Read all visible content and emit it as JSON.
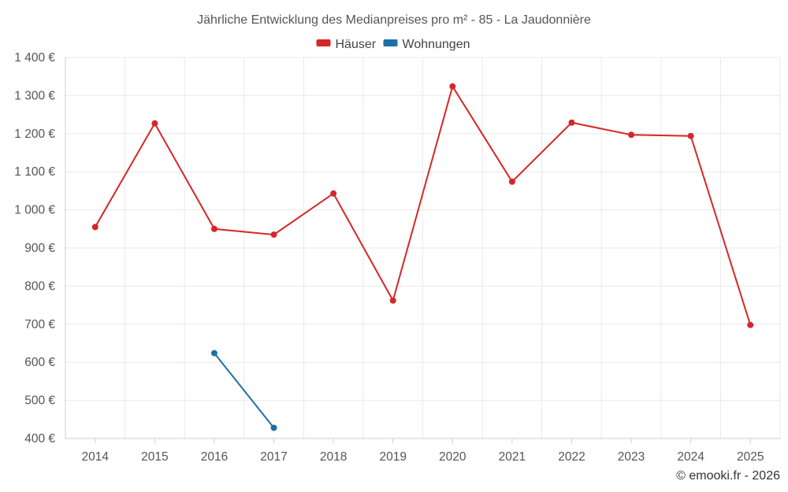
{
  "chart_data": {
    "type": "line",
    "title": "Jährliche Entwicklung des Medianpreises pro m² - 85 - La Jaudonnière",
    "categories": [
      "2014",
      "2015",
      "2016",
      "2017",
      "2018",
      "2019",
      "2020",
      "2021",
      "2022",
      "2023",
      "2024",
      "2025"
    ],
    "series": [
      {
        "name": "Häuser",
        "color": "#d62728",
        "values": [
          955,
          1227,
          950,
          935,
          1043,
          762,
          1324,
          1074,
          1229,
          1197,
          1194,
          698
        ]
      },
      {
        "name": "Wohnungen",
        "color": "#1f6fa6",
        "values": [
          null,
          null,
          624,
          428,
          null,
          null,
          null,
          null,
          null,
          null,
          null,
          null
        ]
      }
    ],
    "ylim": [
      400,
      1400
    ],
    "yticks": [
      400,
      500,
      600,
      700,
      800,
      900,
      1000,
      1100,
      1200,
      1300,
      1400
    ],
    "ytick_labels": [
      "400 €",
      "500 €",
      "600 €",
      "700 €",
      "800 €",
      "900 €",
      "1 000 €",
      "1 100 €",
      "1 200 €",
      "1 300 €",
      "1 400 €"
    ],
    "xlabel": "",
    "ylabel": "",
    "grid": true,
    "legend": "top-center"
  },
  "credit": "© emooki.fr - 2026"
}
